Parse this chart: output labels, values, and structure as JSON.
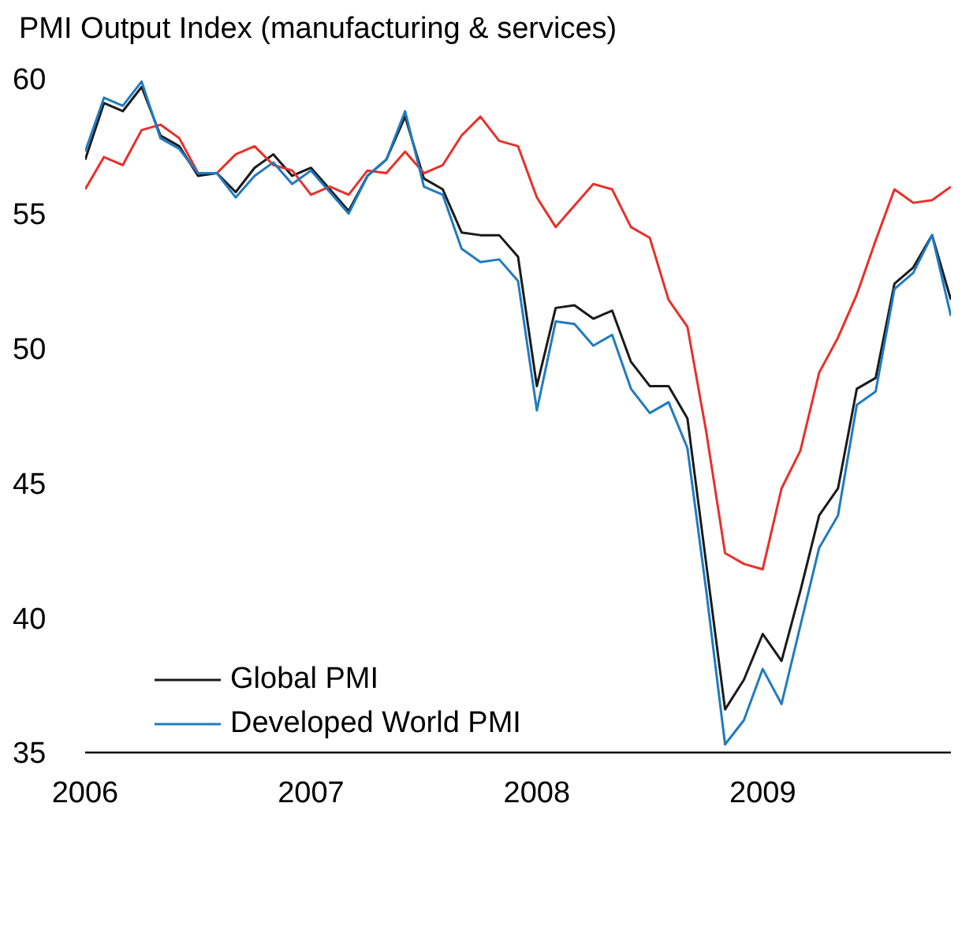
{
  "chart_data": {
    "type": "line",
    "title": "PMI Output Index (manufacturing & services)",
    "x": [
      "2006-01",
      "2006-02",
      "2006-03",
      "2006-04",
      "2006-05",
      "2006-06",
      "2006-07",
      "2006-08",
      "2006-09",
      "2006-10",
      "2006-11",
      "2006-12",
      "2007-01",
      "2007-02",
      "2007-03",
      "2007-04",
      "2007-05",
      "2007-06",
      "2007-07",
      "2007-08",
      "2007-09",
      "2007-10",
      "2007-11",
      "2007-12",
      "2008-01",
      "2008-02",
      "2008-03",
      "2008-04",
      "2008-05",
      "2008-06",
      "2008-07",
      "2008-08",
      "2008-09",
      "2008-10",
      "2008-11",
      "2008-12",
      "2009-01",
      "2009-02",
      "2009-03",
      "2009-04",
      "2009-05",
      "2009-06",
      "2009-07",
      "2009-08",
      "2009-09",
      "2009-10",
      "2009-11"
    ],
    "series": [
      {
        "name": "Global PMI",
        "color": "#1a1a1a",
        "values": [
          57.0,
          59.1,
          58.8,
          59.7,
          57.9,
          57.5,
          56.4,
          56.5,
          55.8,
          56.7,
          57.2,
          56.4,
          56.7,
          55.9,
          55.1,
          56.4,
          57.0,
          58.6,
          56.3,
          55.9,
          54.3,
          54.2,
          54.2,
          53.4,
          48.6,
          51.5,
          51.6,
          51.1,
          51.4,
          49.5,
          48.6,
          48.6,
          47.4,
          42.0,
          36.6,
          37.7,
          39.4,
          38.4,
          41.0,
          43.8,
          44.8,
          48.5,
          48.9,
          52.4,
          53.0,
          54.2,
          51.8
        ]
      },
      {
        "color": "#e8302a",
        "values": [
          55.9,
          57.1,
          56.8,
          58.1,
          58.3,
          57.8,
          56.5,
          56.5,
          57.2,
          57.5,
          56.8,
          56.6,
          55.7,
          56.0,
          55.7,
          56.6,
          56.5,
          57.3,
          56.5,
          56.8,
          57.9,
          58.6,
          57.7,
          57.5,
          55.6,
          54.5,
          55.3,
          56.1,
          55.9,
          54.5,
          54.1,
          51.8,
          50.8,
          46.9,
          42.4,
          42.0,
          41.8,
          44.8,
          46.2,
          49.1,
          50.4,
          52.0,
          54.0,
          55.9,
          55.4,
          55.5,
          56.0
        ]
      },
      {
        "name": "Developed World PMI",
        "color": "#1f7bc1",
        "values": [
          57.3,
          59.3,
          59.0,
          59.9,
          57.8,
          57.4,
          56.5,
          56.5,
          55.6,
          56.4,
          56.9,
          56.1,
          56.6,
          55.8,
          55.0,
          56.4,
          57.0,
          58.8,
          56.0,
          55.7,
          53.7,
          53.2,
          53.3,
          52.5,
          47.7,
          51.0,
          50.9,
          50.1,
          50.5,
          48.5,
          47.6,
          48.0,
          46.3,
          41.0,
          35.3,
          36.2,
          38.1,
          36.8,
          39.7,
          42.6,
          43.8,
          47.9,
          48.4,
          52.2,
          52.8,
          54.2,
          51.2
        ]
      }
    ],
    "xlim": [
      "2006-01",
      "2009-11"
    ],
    "xticks": [
      {
        "value": "2006-01",
        "label": "2006"
      },
      {
        "value": "2007-01",
        "label": "2007"
      },
      {
        "value": "2008-01",
        "label": "2008"
      },
      {
        "value": "2009-01",
        "label": "2009"
      }
    ],
    "ylim": [
      35,
      60
    ],
    "yticks": [
      35,
      40,
      45,
      50,
      55,
      60
    ],
    "grid": false,
    "legend": "bottom left",
    "marker": "none",
    "line_style": "solid"
  }
}
